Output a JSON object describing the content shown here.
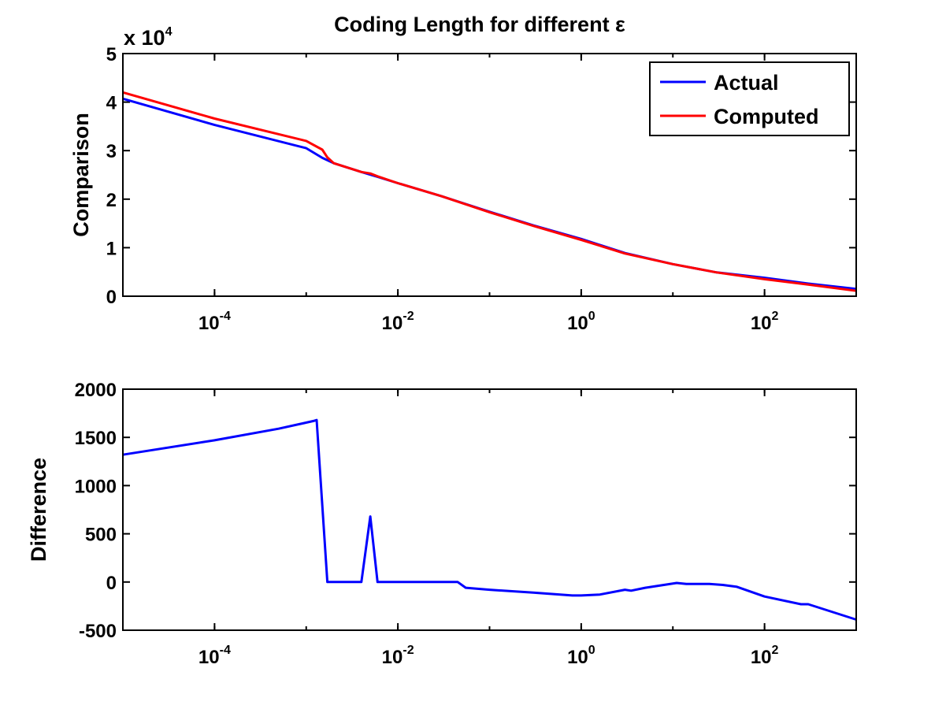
{
  "chart_data": [
    {
      "type": "line",
      "title": "Coding Length for different ε",
      "xlabel": "",
      "ylabel": "Comparison",
      "y_multiplier_label": "x 10",
      "y_multiplier_exp": "4",
      "x_scale": "log",
      "xlim": [
        1e-05,
        1000
      ],
      "ylim": [
        0,
        5
      ],
      "xticks": [
        {
          "value": 0.0001,
          "base": "10",
          "exp": "-4"
        },
        {
          "value": 0.01,
          "base": "10",
          "exp": "-2"
        },
        {
          "value": 1,
          "base": "10",
          "exp": "0"
        },
        {
          "value": 100,
          "base": "10",
          "exp": "2"
        }
      ],
      "yticks": [
        {
          "value": 0,
          "label": "0"
        },
        {
          "value": 1,
          "label": "1"
        },
        {
          "value": 2,
          "label": "2"
        },
        {
          "value": 3,
          "label": "3"
        },
        {
          "value": 4,
          "label": "4"
        },
        {
          "value": 5,
          "label": "5"
        }
      ],
      "grid": false,
      "legend_position": "top-right",
      "series": [
        {
          "name": "Actual",
          "color": "#0000ff",
          "x": [
            1e-05,
            0.0001,
            0.001,
            0.0015,
            0.002,
            0.004,
            0.006,
            0.01,
            0.03,
            0.1,
            0.3,
            1,
            3,
            10,
            30,
            100,
            300,
            1000
          ],
          "y": [
            4.07,
            3.53,
            3.05,
            2.85,
            2.74,
            2.56,
            2.46,
            2.33,
            2.06,
            1.74,
            1.46,
            1.18,
            0.89,
            0.66,
            0.49,
            0.38,
            0.26,
            0.15
          ]
        },
        {
          "name": "Computed",
          "color": "#ff0000",
          "x": [
            1e-05,
            0.0001,
            0.001,
            0.0015,
            0.0017,
            0.002,
            0.004,
            0.005,
            0.006,
            0.01,
            0.03,
            0.1,
            0.3,
            1,
            3,
            10,
            30,
            100,
            300,
            1000
          ],
          "y": [
            4.2,
            3.66,
            3.2,
            3.02,
            2.86,
            2.74,
            2.56,
            2.53,
            2.47,
            2.33,
            2.06,
            1.73,
            1.45,
            1.16,
            0.88,
            0.66,
            0.49,
            0.35,
            0.24,
            0.11
          ]
        }
      ]
    },
    {
      "type": "line",
      "title": "",
      "xlabel": "",
      "ylabel": "Difference",
      "x_scale": "log",
      "xlim": [
        1e-05,
        1000
      ],
      "ylim": [
        -500,
        2000
      ],
      "xticks": [
        {
          "value": 0.0001,
          "base": "10",
          "exp": "-4"
        },
        {
          "value": 0.01,
          "base": "10",
          "exp": "-2"
        },
        {
          "value": 1,
          "base": "10",
          "exp": "0"
        },
        {
          "value": 100,
          "base": "10",
          "exp": "2"
        }
      ],
      "yticks": [
        {
          "value": -500,
          "label": "-500"
        },
        {
          "value": 0,
          "label": "0"
        },
        {
          "value": 500,
          "label": "500"
        },
        {
          "value": 1000,
          "label": "1000"
        },
        {
          "value": 1500,
          "label": "1500"
        },
        {
          "value": 2000,
          "label": "2000"
        }
      ],
      "grid": false,
      "series": [
        {
          "color": "#0000ff",
          "x": [
            1e-05,
            0.0001,
            0.0005,
            0.0012,
            0.0013,
            0.0017,
            0.004,
            0.005,
            0.006,
            0.01,
            0.03,
            0.045,
            0.055,
            0.1,
            0.3,
            0.8,
            1,
            1.6,
            3,
            3.5,
            5,
            11,
            14,
            25,
            35,
            50,
            100,
            250,
            300,
            1000
          ],
          "y": [
            1320,
            1470,
            1590,
            1670,
            1680,
            0,
            0,
            680,
            0,
            0,
            0,
            0,
            -60,
            -80,
            -110,
            -140,
            -140,
            -130,
            -80,
            -90,
            -60,
            -10,
            -20,
            -20,
            -30,
            -50,
            -150,
            -230,
            -230,
            -390
          ]
        }
      ]
    }
  ]
}
